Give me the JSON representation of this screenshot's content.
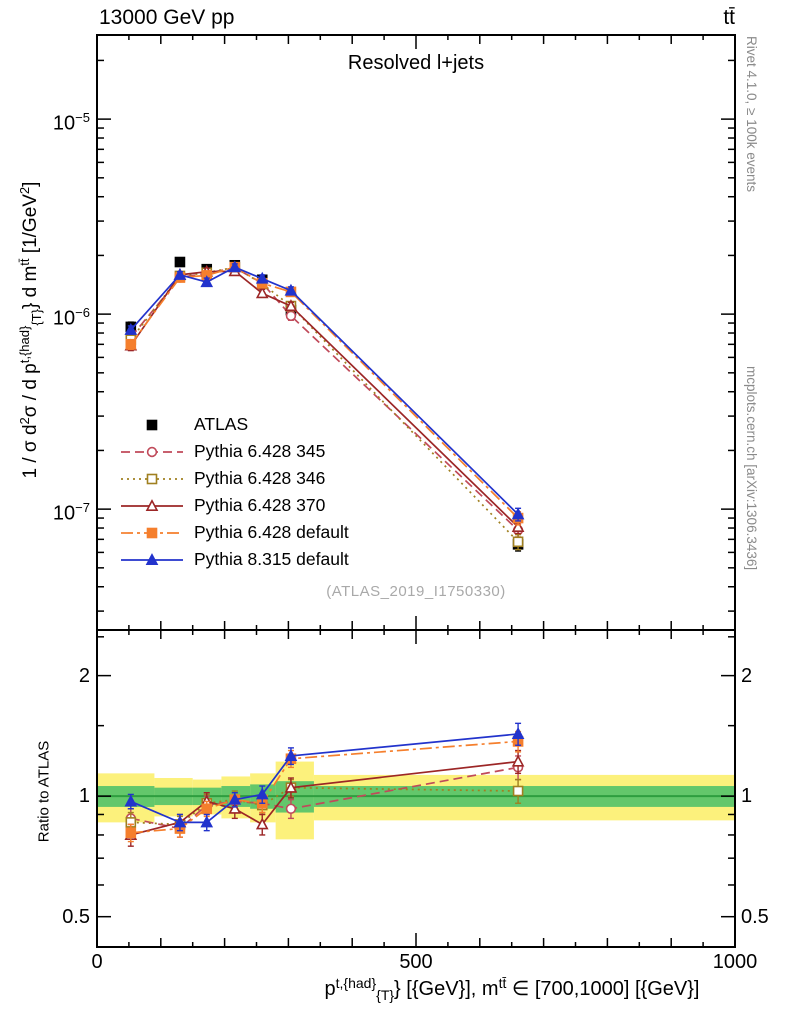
{
  "header": {
    "left": "13000 GeV pp",
    "right": "tt̄"
  },
  "sidebar_right": {
    "top": "Rivet 4.1.0, ≥ 100k events",
    "bottom": "mcplots.cern.ch [arXiv:1306.3436]"
  },
  "labels": {
    "ylabel": {
      "p1": "1 / σ d",
      "p2": "2",
      "p3": "σ / d p",
      "p4": "t,{had}",
      "p5": "{T}",
      "p6": "} d m",
      "p7": "tt̄",
      "p8": " [1/GeV",
      "p9": "2",
      "p10": "]"
    },
    "ratio_ylabel": "Ratio to ATLAS",
    "xlabel": {
      "p1": "p",
      "p2": "t,{had}",
      "p3": "{T}",
      "p4": "} [{GeV}], m",
      "p5": "tt̄",
      "p6": " ∈ [700,1000] [{GeV}]"
    }
  },
  "chart_data": {
    "type": "line",
    "title": "Resolved l+jets",
    "watermark": "(ATLAS_2019_I1750330)",
    "x": [
      53,
      130,
      172,
      216,
      259,
      304,
      660
    ],
    "x_axis": {
      "range": [
        0,
        1000
      ],
      "label": "p^{t,{had}}_{T}} [{GeV}], m^{tt̄} ∈ [700,1000] [{GeV}]",
      "ticks": [
        {
          "label": "0",
          "value": 0
        },
        {
          "label": "500",
          "value": 500
        },
        {
          "label": "1000",
          "value": 1000
        }
      ]
    },
    "y_axis_main": {
      "scale": "log",
      "range": [
        2.4e-08,
        2.7e-05
      ],
      "label": "1 / σ d^2σ / d p^{t,{had}}_{T}} d m^{tt̄} [1/GeV^2]",
      "ticks": [
        {
          "base": "10",
          "exp": "−5",
          "value": 1e-05
        },
        {
          "base": "10",
          "exp": "−6",
          "value": 1e-06
        },
        {
          "base": "10",
          "exp": "−7",
          "value": 1e-07
        }
      ]
    },
    "y_axis_ratio": {
      "scale": "log",
      "range": [
        0.42,
        2.6
      ],
      "label": "Ratio to ATLAS",
      "ticks": [
        {
          "label": "2",
          "value": 2
        },
        {
          "label": "1",
          "value": 1
        },
        {
          "label": "0.5",
          "value": 0.5
        }
      ]
    },
    "series": [
      {
        "name": "ATLAS",
        "color": "#000000",
        "marker": "square",
        "filled": true,
        "line": "none",
        "values": [
          8.6e-07,
          1.85e-06,
          1.7e-06,
          1.78e-06,
          1.5e-06,
          1.05e-06,
          6.6e-08
        ],
        "errors": [
          5e-08,
          9e-08,
          9e-08,
          9e-08,
          8e-08,
          6e-08,
          5e-09
        ]
      },
      {
        "name": "Pythia 6.428 345",
        "color": "#c04a5a",
        "marker": "circle",
        "filled": false,
        "line": "dashed",
        "values": [
          7.6e-07,
          1.54e-06,
          1.62e-06,
          1.73e-06,
          1.44e-06,
          9.8e-07,
          7.8e-08
        ],
        "errors": [
          4e-08,
          6e-08,
          7e-08,
          7e-08,
          7e-08,
          5e-08,
          6e-09
        ],
        "ratio": [
          0.88,
          0.83,
          0.95,
          0.97,
          0.96,
          0.93,
          1.18
        ],
        "ratio_errors": [
          0.05,
          0.04,
          0.05,
          0.05,
          0.05,
          0.05,
          0.08
        ]
      },
      {
        "name": "Pythia 6.428 346",
        "color": "#a08020",
        "marker": "square",
        "filled": false,
        "line": "dotted",
        "values": [
          7.4e-07,
          1.57e-06,
          1.63e-06,
          1.74e-06,
          1.43e-06,
          1.1e-06,
          6.8e-08
        ],
        "errors": [
          4e-08,
          6e-08,
          7e-08,
          7e-08,
          7e-08,
          5e-08,
          6e-09
        ],
        "ratio": [
          0.86,
          0.85,
          0.96,
          0.98,
          0.95,
          1.05,
          1.03
        ],
        "ratio_errors": [
          0.05,
          0.04,
          0.05,
          0.05,
          0.05,
          0.05,
          0.07
        ]
      },
      {
        "name": "Pythia 6.428 370",
        "color": "#9c2626",
        "marker": "triangle",
        "filled": false,
        "line": "solid",
        "values": [
          6.9e-07,
          1.59e-06,
          1.65e-06,
          1.66e-06,
          1.28e-06,
          1.1e-06,
          8.1e-08
        ],
        "errors": [
          4e-08,
          6e-08,
          7e-08,
          7e-08,
          6e-08,
          5e-08,
          6e-09
        ],
        "ratio": [
          0.8,
          0.86,
          0.97,
          0.93,
          0.85,
          1.05,
          1.22
        ],
        "ratio_errors": [
          0.05,
          0.04,
          0.05,
          0.05,
          0.05,
          0.06,
          0.08
        ]
      },
      {
        "name": "Pythia 6.428 default",
        "color": "#f57f2d",
        "marker": "square",
        "filled": true,
        "line": "dashdot",
        "values": [
          7e-07,
          1.54e-06,
          1.58e-06,
          1.74e-06,
          1.44e-06,
          1.3e-06,
          9e-08
        ],
        "errors": [
          4e-08,
          6e-08,
          7e-08,
          7e-08,
          7e-08,
          6e-08,
          7e-09
        ],
        "ratio": [
          0.81,
          0.83,
          0.93,
          0.98,
          0.96,
          1.24,
          1.37
        ],
        "ratio_errors": [
          0.04,
          0.04,
          0.04,
          0.04,
          0.05,
          0.06,
          0.08
        ]
      },
      {
        "name": "Pythia 8.315 default",
        "color": "#2233cc",
        "marker": "triangle",
        "filled": true,
        "line": "solid",
        "values": [
          8.3e-07,
          1.59e-06,
          1.46e-06,
          1.74e-06,
          1.52e-06,
          1.32e-06,
          9.4e-08
        ],
        "errors": [
          4e-08,
          6e-08,
          7e-08,
          7e-08,
          7e-08,
          6e-08,
          7e-09
        ],
        "ratio": [
          0.97,
          0.86,
          0.86,
          0.98,
          1.01,
          1.26,
          1.43
        ],
        "ratio_errors": [
          0.04,
          0.04,
          0.04,
          0.04,
          0.05,
          0.06,
          0.09
        ]
      }
    ],
    "bands": {
      "bin_edges": [
        0,
        90,
        150,
        195,
        240,
        280,
        340,
        1000
      ],
      "yellow": [
        [
          0.86,
          1.14
        ],
        [
          0.89,
          1.11
        ],
        [
          0.9,
          1.1
        ],
        [
          0.88,
          1.12
        ],
        [
          0.86,
          1.14
        ],
        [
          0.78,
          1.22
        ],
        [
          0.87,
          1.13
        ]
      ],
      "green": [
        [
          0.94,
          1.06
        ],
        [
          0.95,
          1.05
        ],
        [
          0.95,
          1.05
        ],
        [
          0.94,
          1.06
        ],
        [
          0.93,
          1.07
        ],
        [
          0.91,
          1.09
        ],
        [
          0.94,
          1.06
        ]
      ],
      "yellow_color": "#fcf17c",
      "green_color": "#63c76b",
      "unity_line_color": "#2e9e3f"
    }
  }
}
